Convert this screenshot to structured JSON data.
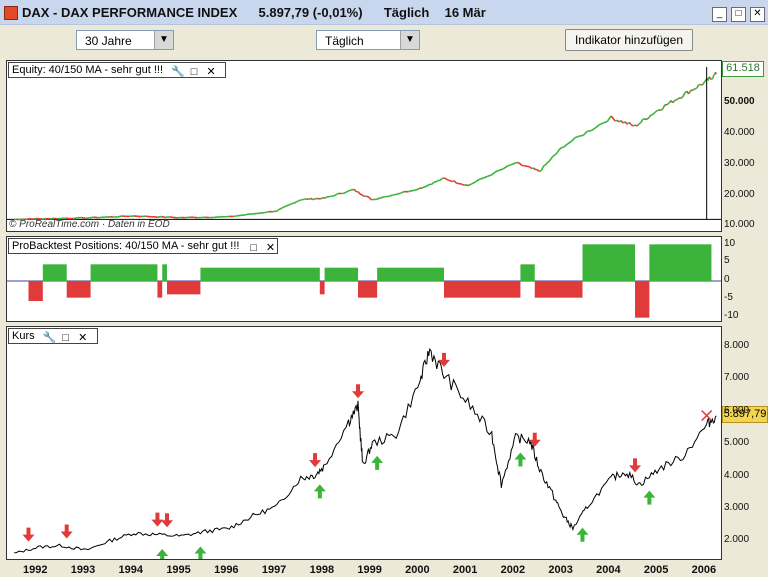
{
  "window": {
    "title_symbol": "DAX - DAX PERFORMANCE INDEX",
    "title_price": "5.897,79 (-0,01%)",
    "title_interval": "Täglich",
    "title_date": "16 Mär",
    "minimize": "_",
    "maximize": "□",
    "close": "✕"
  },
  "toolbar": {
    "period": "30 Jahre",
    "interval": "Täglich",
    "add_indicator": "Indikator hinzufügen"
  },
  "icons": {
    "wrench": "wrench-icon",
    "maximize": "maximize-icon",
    "close": "close-icon"
  },
  "colors": {
    "green": "#3cb43c",
    "red": "#e03a3a",
    "line": "#000000",
    "price_box": "#f3d64e"
  },
  "equity_panel": {
    "title": "Equity: 40/150 MA - sehr gut !!!",
    "last_value": "61.518",
    "ticks": [
      "50.000",
      "40.000",
      "30.000",
      "20.000",
      "10.000"
    ],
    "watermark": "© ProRealTime.com · Daten in EOD"
  },
  "positions_panel": {
    "title": "ProBacktest Positions: 40/150 MA - sehr gut !!!",
    "ticks": [
      "10",
      "5",
      "0",
      "-5",
      "-10"
    ]
  },
  "price_panel": {
    "title": "Kurs",
    "last_price": "5.897,79",
    "ticks": [
      "8.000",
      "7.000",
      "6.000",
      "5.000",
      "4.000",
      "3.000",
      "2.000"
    ]
  },
  "x_axis": {
    "years": [
      "1992",
      "1993",
      "1994",
      "1995",
      "1996",
      "1997",
      "1998",
      "1999",
      "2000",
      "2001",
      "2002",
      "2003",
      "2004",
      "2005",
      "2006"
    ]
  },
  "chart_data": [
    {
      "type": "line",
      "title": "Equity: 40/150 MA - sehr gut !!!",
      "x": [
        1991.5,
        1992,
        1993,
        1994,
        1995,
        1996,
        1997,
        1997.5,
        1998,
        1998.6,
        1999,
        2000,
        2000.5,
        2001,
        2002,
        2002.5,
        2003,
        2004,
        2004.5,
        2005,
        2005.5,
        2006,
        2006.2
      ],
      "values": [
        10000,
        10200,
        10500,
        11200,
        10600,
        10900,
        13000,
        17000,
        17500,
        20500,
        17000,
        21000,
        24500,
        22000,
        30000,
        27000,
        36000,
        46000,
        43000,
        49000,
        54000,
        59000,
        61518
      ],
      "ylim": [
        8000,
        64000
      ]
    },
    {
      "type": "bar",
      "title": "ProBacktest Positions: 40/150 MA - sehr gut !!!",
      "x_start": [
        1991.8,
        1992.1,
        1992.6,
        1993.1,
        1994.5,
        1994.6,
        1994.7,
        1995.4,
        1997.9,
        1998.0,
        1998.7,
        1999.1,
        2000.5,
        2002.1,
        2002.4,
        2003.4,
        2004.5,
        2004.8
      ],
      "x_end": [
        1992.1,
        1992.6,
        1993.1,
        1994.5,
        1994.6,
        1994.7,
        1995.4,
        1997.9,
        1998.0,
        1998.7,
        1999.1,
        2000.5,
        2002.1,
        2002.4,
        2003.4,
        2004.5,
        2004.8,
        2006.1
      ],
      "values": [
        -6,
        5,
        -5,
        5,
        -5,
        5,
        -4,
        4,
        -4,
        4,
        -5,
        4,
        -5,
        5,
        -5,
        11,
        -11,
        11
      ],
      "ylim": [
        -12,
        12
      ]
    },
    {
      "type": "line",
      "title": "Kurs",
      "x": [
        1991.5,
        1992,
        1992.5,
        1993,
        1993.5,
        1994,
        1994.5,
        1995,
        1995.5,
        1996,
        1996.5,
        1997,
        1997.5,
        1997.8,
        1998,
        1998.5,
        1998.7,
        1998.8,
        1999,
        1999.5,
        2000,
        2000.2,
        2000.5,
        2001,
        2001.5,
        2001.7,
        2002,
        2002.3,
        2002.5,
        2002.8,
        2003,
        2003.2,
        2003.5,
        2004,
        2004.3,
        2004.6,
        2005,
        2005.5,
        2006,
        2006.2
      ],
      "values": [
        1500,
        1700,
        1750,
        1600,
        1900,
        2150,
        2100,
        2050,
        2200,
        2300,
        2700,
        3000,
        3900,
        4000,
        4300,
        5700,
        6200,
        4300,
        5000,
        5300,
        7000,
        8000,
        7200,
        6300,
        5300,
        3700,
        5200,
        5100,
        4200,
        3300,
        2700,
        2300,
        3000,
        3900,
        4100,
        3700,
        4200,
        4600,
        5600,
        5898
      ],
      "ylim": [
        1450,
        8600
      ]
    }
  ],
  "signals": {
    "buy_years": [
      1994.6,
      1995.4,
      1997.9,
      1999.1,
      2002.1,
      2003.4,
      2004.8
    ],
    "sell_years": [
      1991.8,
      1992.6,
      1994.5,
      1994.7,
      1997.8,
      1998.7,
      2000.5,
      2002.4,
      2004.5
    ]
  }
}
